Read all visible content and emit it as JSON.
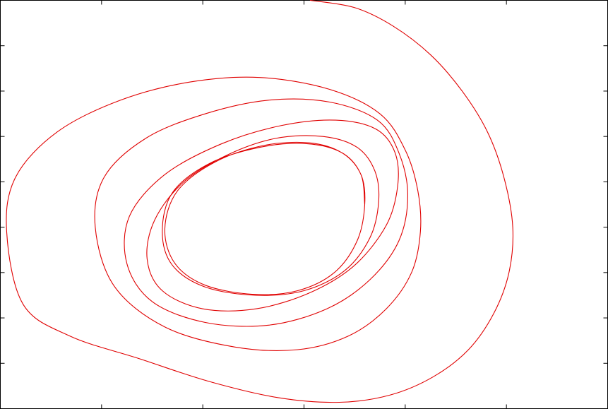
{
  "chart_data": {
    "type": "line",
    "title": "",
    "xlabel": "",
    "ylabel": "",
    "xlim": [
      -2.0,
      2.8
    ],
    "ylim": [
      -2.0,
      2.5
    ],
    "x_ticks": [
      -2.0,
      -1.2,
      -0.4,
      0.4,
      1.2,
      2.0,
      2.8
    ],
    "y_ticks": [
      -2.0,
      -1.5,
      -1.0,
      -0.5,
      0.0,
      0.5,
      1.0,
      1.5,
      2.0,
      2.5
    ],
    "tick_labels_visible": false,
    "grid": false,
    "legend": "none",
    "series": [
      {
        "line_color": "#e00000",
        "description_kind": "inward spiral trajectory converging to a stable limit cycle",
        "x": [
          0.45,
          0.8,
          1.1,
          1.4,
          1.65,
          1.85,
          1.98,
          2.05,
          2.02,
          1.9,
          1.7,
          1.42,
          1.08,
          0.68,
          0.2,
          -0.35,
          -0.9,
          -1.45,
          -1.82,
          -1.95,
          -1.88,
          -1.55,
          -1.05,
          -0.5,
          0.05,
          0.6,
          1.0,
          1.2,
          1.3,
          1.32,
          1.25,
          1.05,
          0.75,
          0.35,
          -0.15,
          -0.7,
          -1.1,
          -1.25,
          -1.18,
          -0.85,
          -0.38,
          0.12,
          0.6,
          0.98,
          1.15,
          1.22,
          1.15,
          0.92,
          0.58,
          0.12,
          -0.38,
          -0.8,
          -1.0,
          -0.98,
          -0.7,
          -0.25,
          0.22,
          0.65,
          0.97,
          1.12,
          1.14,
          1.05,
          0.8,
          0.45,
          0.02,
          -0.4,
          -0.72,
          -0.84,
          -0.78,
          -0.55,
          -0.2,
          0.18,
          0.55,
          0.82,
          0.96,
          0.99,
          0.92,
          0.72,
          0.4,
          0.02,
          -0.38,
          -0.64,
          -0.72,
          -0.64,
          -0.35,
          0.05,
          0.42,
          0.7,
          0.85,
          0.88,
          0.82,
          0.64,
          0.35,
          0.0,
          -0.38,
          -0.62,
          -0.7,
          -0.6,
          -0.3,
          0.08,
          0.44,
          0.7,
          0.85,
          0.88
        ],
        "y": [
          2.5,
          2.42,
          2.22,
          1.9,
          1.5,
          1.05,
          0.55,
          0.0,
          -0.5,
          -0.95,
          -1.35,
          -1.65,
          -1.85,
          -1.93,
          -1.88,
          -1.7,
          -1.45,
          -1.2,
          -0.85,
          -0.05,
          0.55,
          1.05,
          1.4,
          1.6,
          1.65,
          1.52,
          1.25,
          0.85,
          0.4,
          -0.05,
          -0.5,
          -0.9,
          -1.2,
          -1.35,
          -1.32,
          -1.1,
          -0.65,
          0.0,
          0.55,
          0.98,
          1.25,
          1.4,
          1.38,
          1.18,
          0.82,
          0.35,
          -0.15,
          -0.58,
          -0.9,
          -1.08,
          -1.05,
          -0.82,
          -0.4,
          0.12,
          0.58,
          0.92,
          1.12,
          1.18,
          1.08,
          0.82,
          0.45,
          0.02,
          -0.42,
          -0.72,
          -0.9,
          -0.9,
          -0.7,
          -0.35,
          0.08,
          0.5,
          0.8,
          0.98,
          1.0,
          0.88,
          0.62,
          0.28,
          -0.12,
          -0.48,
          -0.7,
          -0.75,
          -0.66,
          -0.42,
          -0.05,
          0.38,
          0.7,
          0.88,
          0.92,
          0.82,
          0.58,
          0.25,
          -0.15,
          -0.5,
          -0.7,
          -0.74,
          -0.64,
          -0.4,
          -0.02,
          0.4,
          0.72,
          0.9,
          0.93,
          0.82,
          0.58,
          0.25
        ]
      }
    ]
  }
}
